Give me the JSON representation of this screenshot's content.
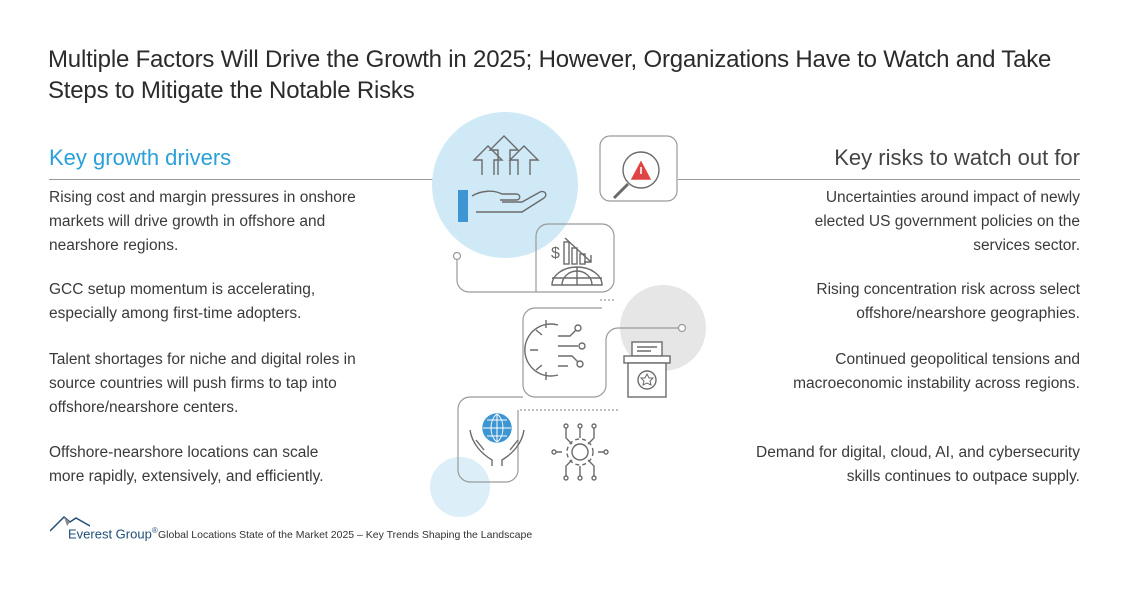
{
  "title": {
    "line1": "Multiple Factors Will Drive the Growth in 2025; However, Organizations Have to Watch and Take",
    "line2": "Steps to Mitigate the Notable Risks"
  },
  "left": {
    "heading": "Key growth drivers",
    "items": [
      {
        "lines": [
          "Rising cost and margin pressures in onshore",
          "markets will drive growth in offshore and",
          "nearshore regions."
        ]
      },
      {
        "lines": [
          "GCC setup momentum is accelerating,",
          "especially among first-time adopters."
        ]
      },
      {
        "lines": [
          "Talent shortages for niche and digital roles in",
          "source countries will push firms to tap into",
          "offshore/nearshore centers."
        ]
      },
      {
        "lines": [
          "Offshore-nearshore locations can scale",
          "more rapidly, extensively, and efficiently."
        ]
      }
    ]
  },
  "right": {
    "heading": "Key risks to watch out for",
    "items": [
      {
        "lines": [
          "Uncertainties around impact of newly",
          "elected US government policies on the",
          "services sector."
        ]
      },
      {
        "lines": [
          "Rising concentration risk across select",
          "offshore/nearshore geographies."
        ]
      },
      {
        "lines": [
          "Continued geopolitical tensions and",
          "macroeconomic instability across regions."
        ]
      },
      {
        "lines": [
          "Demand for digital, cloud, AI, and cybersecurity",
          "skills continues to outpace supply."
        ]
      }
    ]
  },
  "footer": {
    "logo": "Everest Group",
    "logo_mark": "®",
    "caption": "Global Locations State of the Market 2025 – Key Trends Shaping the Landscape"
  },
  "icons": [
    "growth-hand-icon",
    "risk-magnifier-icon",
    "market-decline-icon",
    "gear-network-icon",
    "ballot-box-icon",
    "globe-hands-icon",
    "circuit-gear-icon",
    "everest-logo-icon"
  ],
  "colors": {
    "accent": "#2a9fd8",
    "light_blue": "#cfe9f7",
    "light_gray": "#e6e6e6",
    "icon_blue": "#3d95d3",
    "icon_gray": "#8a8a8a"
  }
}
